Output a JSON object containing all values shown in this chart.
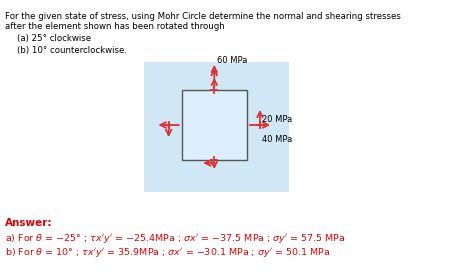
{
  "title_line1": "For the given state of stress, using Mohr Circle determine the normal and shearing stresses",
  "title_line2": "after the element shown has been rotated through",
  "item_a": "(a) 25° clockwise",
  "item_b": "(b) 10° counterclockwise.",
  "stress_labels": [
    "60 MPa",
    "20 MPa",
    "40 MPa"
  ],
  "answer_header": "Answer:",
  "answer_a": "a) For θ = −25° ; τx′y′ = −25.4MPa ; σx′ = −37.5 MPa ; σy′ = 57.5 MPa",
  "answer_b": "b) For θ = 10° ; τx′y′ = 35.9MPa ; σx′ = −30.1 MPa ; σy′ = 50.1 MPa",
  "bg_color": "#ffffff",
  "box_color": "#c8dff0",
  "arrow_color": "#e03030",
  "text_color": "#000000",
  "answer_color": "#dd0000"
}
